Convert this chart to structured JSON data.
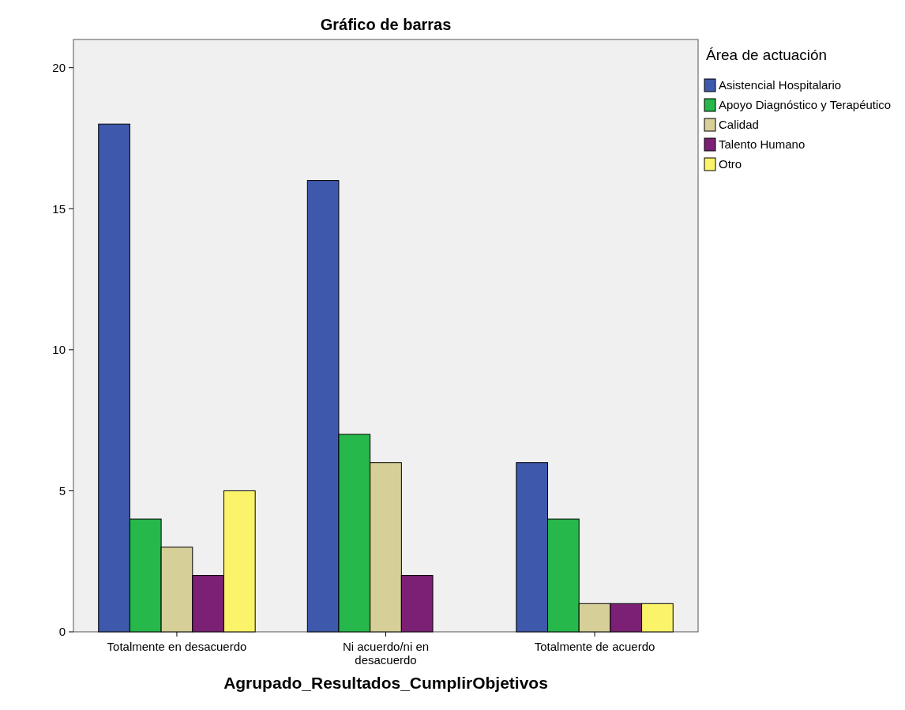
{
  "chart_data": {
    "type": "bar",
    "title": "Gráfico de barras",
    "xlabel": "Agrupado_Resultados_CumplirObjetivos",
    "legend_title": "Área de actuación",
    "categories": [
      "Totalmente en desacuerdo",
      "Ni acuerdo/ni en desacuerdo",
      "Totalmente de acuerdo"
    ],
    "series": [
      {
        "name": "Asistencial Hospitalario",
        "color": "#3e58ac",
        "values": [
          18,
          16,
          6
        ]
      },
      {
        "name": "Apoyo Diagnóstico y Terapéutico",
        "color": "#26b84a",
        "values": [
          4,
          7,
          4
        ]
      },
      {
        "name": "Calidad",
        "color": "#d6cf98",
        "values": [
          3,
          6,
          1
        ]
      },
      {
        "name": "Talento Humano",
        "color": "#7b2074",
        "values": [
          2,
          2,
          1
        ]
      },
      {
        "name": "Otro",
        "color": "#fbf46a",
        "values": [
          5,
          null,
          1
        ]
      }
    ],
    "ylim": [
      0,
      21
    ],
    "yticks": [
      0,
      5,
      10,
      15,
      20
    ],
    "grid": false,
    "legend": "right"
  }
}
